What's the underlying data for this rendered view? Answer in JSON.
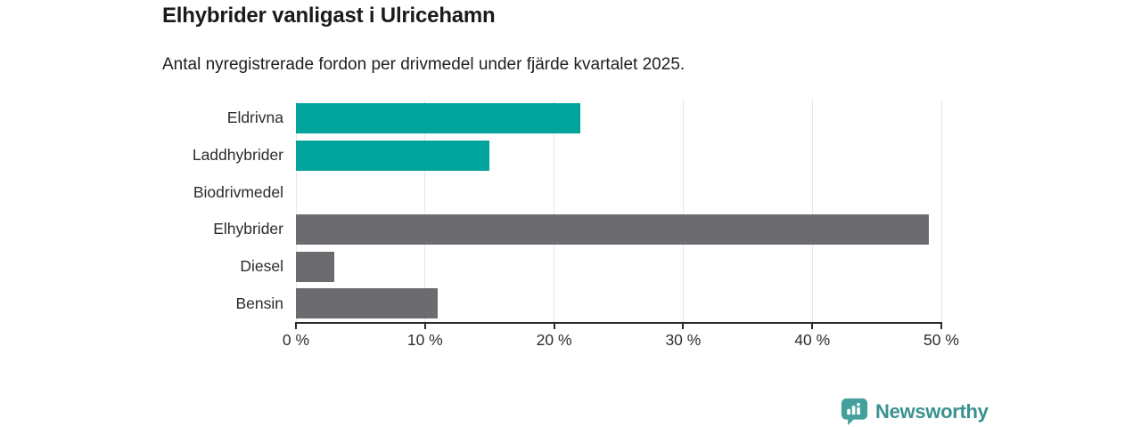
{
  "header": {
    "title": "Elhybrider vanligast i Ulricehamn",
    "subtitle": "Antal nyregistrerade fordon per drivmedel under fjärde kvartalet 2025."
  },
  "chart_data": {
    "type": "bar",
    "orientation": "horizontal",
    "title": "Elhybrider vanligast i Ulricehamn",
    "subtitle": "Antal nyregistrerade fordon per drivmedel under fjärde kvartalet 2025.",
    "categories": [
      "Eldrivna",
      "Laddhybrider",
      "Biodrivmedel",
      "Elhybrider",
      "Diesel",
      "Bensin"
    ],
    "values": [
      22,
      15,
      0,
      49,
      3,
      11
    ],
    "unit": "%",
    "xlim": [
      0,
      50
    ],
    "x_ticks": [
      0,
      10,
      20,
      30,
      40,
      50
    ],
    "x_tick_labels": [
      "0 %",
      "10 %",
      "20 %",
      "30 %",
      "40 %",
      "50 %"
    ],
    "bar_colors": [
      "#00a49b",
      "#00a49b",
      "#00a49b",
      "#6c6b70",
      "#6c6b70",
      "#6c6b70"
    ],
    "grid": true,
    "legend": "none"
  },
  "colors": {
    "teal_bar": "#00a49b",
    "gray_bar": "#6c6b70",
    "axis": "#2b2b2b",
    "gridline": "#e7e7e7",
    "brand_teal": "#3a918e",
    "icon_teal": "#43a09a"
  },
  "branding": {
    "logo_text": "Newsworthy"
  }
}
